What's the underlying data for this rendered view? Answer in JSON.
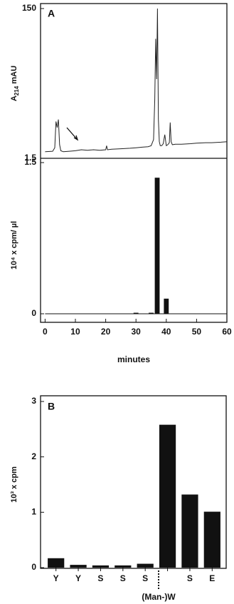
{
  "chart_data": [
    {
      "type": "line",
      "panel_label": "A",
      "ylabel": {
        "main": "A",
        "sub": "214",
        "rest": " mAU"
      },
      "xlim": [
        -1.5,
        60
      ],
      "ylim": [
        1.5,
        150
      ],
      "yticks": [
        1.5,
        150
      ],
      "color": "#222",
      "x": [
        0,
        2.5,
        3.2,
        3.6,
        4,
        4.4,
        4.8,
        5.2,
        6,
        8,
        10,
        12,
        14,
        16,
        18,
        20,
        20.3,
        20.6,
        22,
        25,
        28,
        30,
        32,
        34,
        35,
        35.8,
        36.2,
        36.5,
        36.8,
        37.1,
        37.4,
        37.7,
        38,
        38.5,
        39,
        39.5,
        40,
        40.5,
        41,
        41.3,
        41.6,
        42,
        43,
        45,
        48,
        50,
        53,
        55,
        58,
        60
      ],
      "y": [
        8,
        8.5,
        12,
        38,
        32,
        40,
        15,
        9,
        8,
        8.5,
        9,
        10,
        9.5,
        10,
        9.5,
        10,
        14,
        10,
        10.5,
        11,
        11.5,
        12,
        12.5,
        13,
        14,
        20,
        60,
        120,
        80,
        150,
        40,
        18,
        14,
        14,
        16,
        25,
        14,
        15,
        17,
        37,
        18,
        15,
        15.5,
        15.5,
        16,
        16.5,
        17,
        17,
        17.5,
        18
      ]
    },
    {
      "type": "bar",
      "ylabel": "10⁴ x cpm/ µl",
      "xlabel": "minutes",
      "xlim": [
        -1.5,
        60
      ],
      "ylim": [
        0,
        1.5
      ],
      "yticks": [
        0,
        1.5
      ],
      "xticks": [
        0,
        10,
        20,
        30,
        40,
        50,
        60
      ],
      "color": "#111",
      "x": [
        30,
        35,
        37,
        40
      ],
      "values": [
        0.01,
        0.01,
        1.35,
        0.15
      ]
    },
    {
      "type": "category-bar",
      "panel_label": "B",
      "ylabel": "10³ x cpm",
      "categories": [
        "Y",
        "Y",
        "S",
        "S",
        "S",
        "(Man-)W",
        "S",
        "E"
      ],
      "values": [
        0.17,
        0.05,
        0.04,
        0.04,
        0.07,
        2.58,
        1.32,
        1.01
      ],
      "ylim": [
        0,
        3
      ],
      "yticks": [
        0,
        1,
        2,
        3
      ],
      "color": "#111"
    }
  ]
}
